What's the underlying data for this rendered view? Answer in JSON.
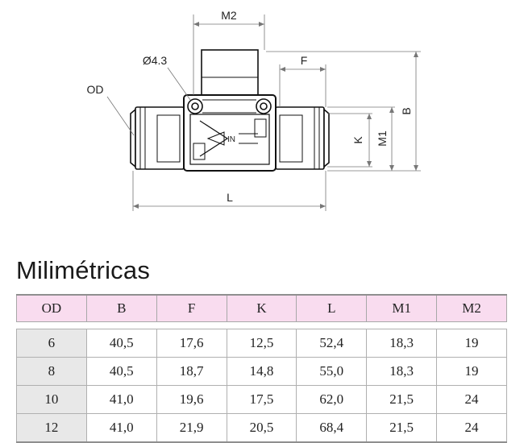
{
  "drawing": {
    "labels": {
      "m2": "M2",
      "hole": "Ø4.3",
      "f": "F",
      "od": "OD",
      "b": "B",
      "k": "K",
      "m1": "M1",
      "l": "L",
      "in": "IN"
    }
  },
  "section_title": "Milimétricas",
  "table": {
    "headers": [
      "OD",
      "B",
      "F",
      "K",
      "L",
      "M1",
      "M2"
    ],
    "rows": [
      [
        "6",
        "40,5",
        "17,6",
        "12,5",
        "52,4",
        "18,3",
        "19"
      ],
      [
        "8",
        "40,5",
        "18,7",
        "14,8",
        "55,0",
        "18,3",
        "19"
      ],
      [
        "10",
        "41,0",
        "19,6",
        "17,5",
        "62,0",
        "21,5",
        "24"
      ],
      [
        "12",
        "41,0",
        "21,9",
        "20,5",
        "68,4",
        "21,5",
        "24"
      ]
    ]
  }
}
